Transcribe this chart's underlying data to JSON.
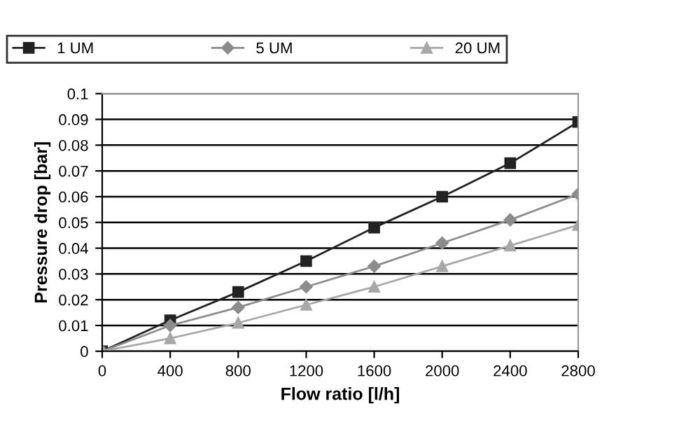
{
  "chart_data": {
    "type": "line",
    "xlabel": "Flow ratio [l/h]",
    "ylabel": "Pressure drop [bar]",
    "x": [
      0,
      400,
      800,
      1200,
      1600,
      2000,
      2400,
      2800
    ],
    "series": [
      {
        "name": "1 UM",
        "color": "#222222",
        "marker": "square",
        "values": [
          0,
          0.012,
          0.023,
          0.035,
          0.048,
          0.06,
          0.073,
          0.089
        ]
      },
      {
        "name": "5 UM",
        "color": "#8c8c8c",
        "marker": "diamond",
        "values": [
          0,
          0.01,
          0.017,
          0.025,
          0.033,
          0.042,
          0.051,
          0.061
        ]
      },
      {
        "name": "20 UM",
        "color": "#a8a8a8",
        "marker": "triangle",
        "values": [
          0,
          0.005,
          0.011,
          0.018,
          0.025,
          0.033,
          0.041,
          0.049
        ]
      }
    ],
    "xlim": [
      0,
      2800
    ],
    "xticks": [
      0,
      400,
      800,
      1200,
      1600,
      2000,
      2400,
      2800
    ],
    "ylim": [
      0,
      0.1
    ],
    "yticks": [
      0,
      0.01,
      0.02,
      0.03,
      0.04,
      0.05,
      0.06,
      0.07,
      0.08,
      0.09,
      0.1
    ],
    "grid": "y",
    "legend": "top",
    "line_style": "solid"
  }
}
